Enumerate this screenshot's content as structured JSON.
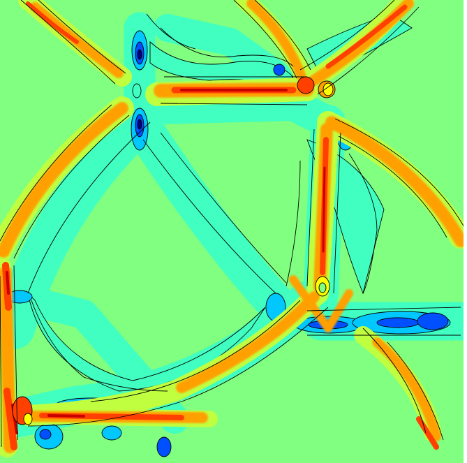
{
  "figure": {
    "kind": "filled-contour-field",
    "colormap": [
      "#00007f",
      "#0050ff",
      "#00c8ff",
      "#40ffc0",
      "#80ff80",
      "#c0ff40",
      "#ffff00",
      "#ffa000",
      "#ff4000",
      "#c80000",
      "#7f0000"
    ],
    "background_level_color": "#80ff80",
    "contour_line_color": "#000000",
    "has_axes": false,
    "has_title": false,
    "has_colorbar": false
  }
}
